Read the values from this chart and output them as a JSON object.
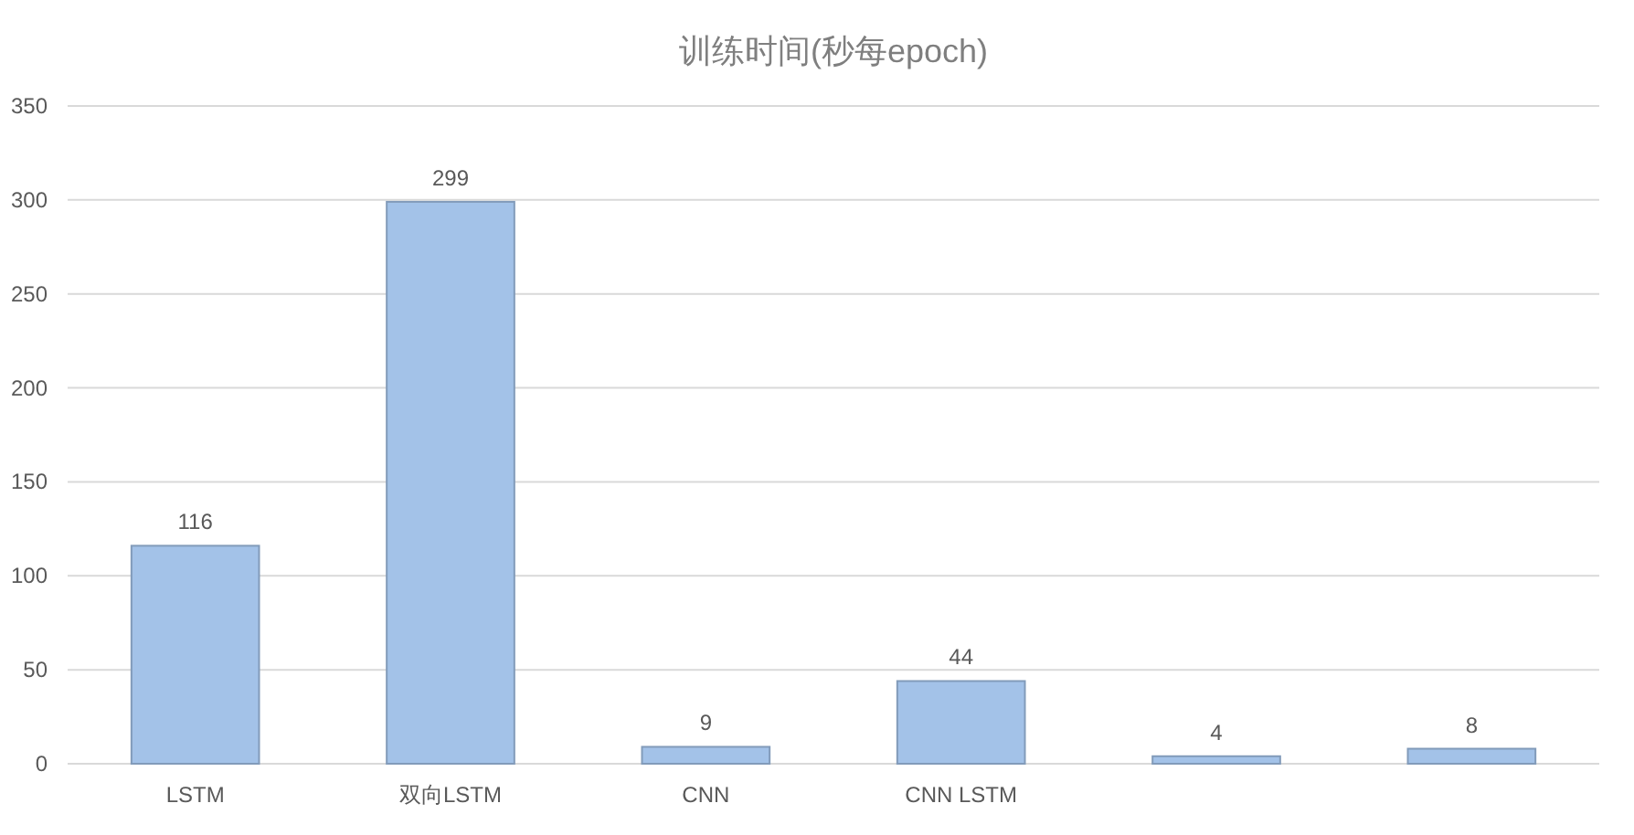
{
  "chart_data": {
    "type": "bar",
    "title": "训练时间(秒每epoch)",
    "categories": [
      "LSTM",
      "双向LSTM",
      "CNN",
      "CNN LSTM",
      null,
      null
    ],
    "values": [
      116,
      299,
      9,
      44,
      4,
      8
    ],
    "color": "#a3c2e8",
    "ylim": [
      0,
      350
    ],
    "yticks": [
      0,
      50,
      100,
      150,
      200,
      250,
      300,
      350
    ],
    "grid": "y",
    "data_labels": true
  }
}
